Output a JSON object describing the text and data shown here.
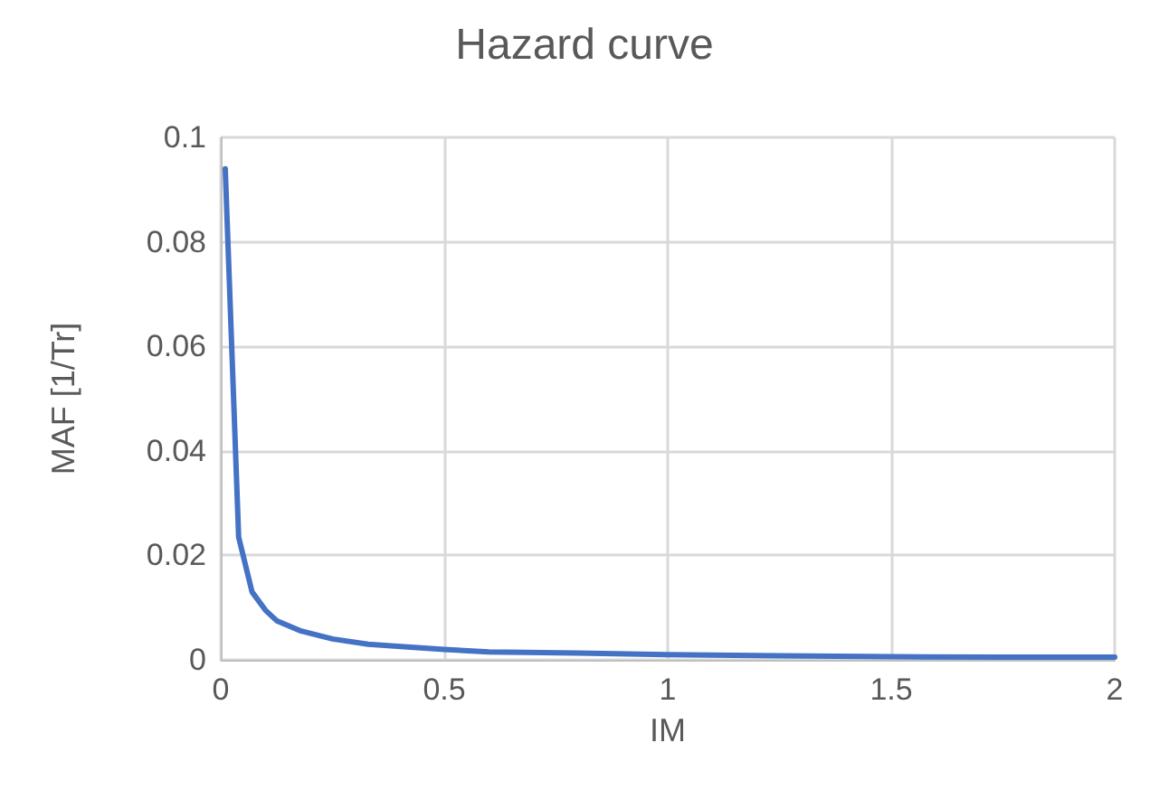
{
  "chart_data": {
    "type": "line",
    "title": "Hazard curve",
    "xlabel": "IM",
    "ylabel": "MAF [1/Tr]",
    "xlim": [
      0,
      2
    ],
    "xticks": [
      0,
      0.5,
      1,
      1.5,
      2
    ],
    "ylim": [
      0,
      0.1
    ],
    "yticks": [
      0,
      0.02,
      0.04,
      0.06,
      0.08,
      0.1
    ],
    "grid": true,
    "marker": "none",
    "series": [
      {
        "color": "#4472c4",
        "x": [
          0.01,
          0.04,
          0.07,
          0.1,
          0.125,
          0.18,
          0.25,
          0.33,
          0.41,
          0.5,
          0.6,
          0.8,
          1,
          1.25,
          1.5,
          1.75,
          2
        ],
        "values": [
          0.094,
          0.0235,
          0.013,
          0.0095,
          0.0075,
          0.0055,
          0.004,
          0.003,
          0.0025,
          0.002,
          0.0015,
          0.0013,
          0.001,
          0.0008,
          0.0006,
          0.0005,
          0.0005
        ]
      }
    ]
  }
}
